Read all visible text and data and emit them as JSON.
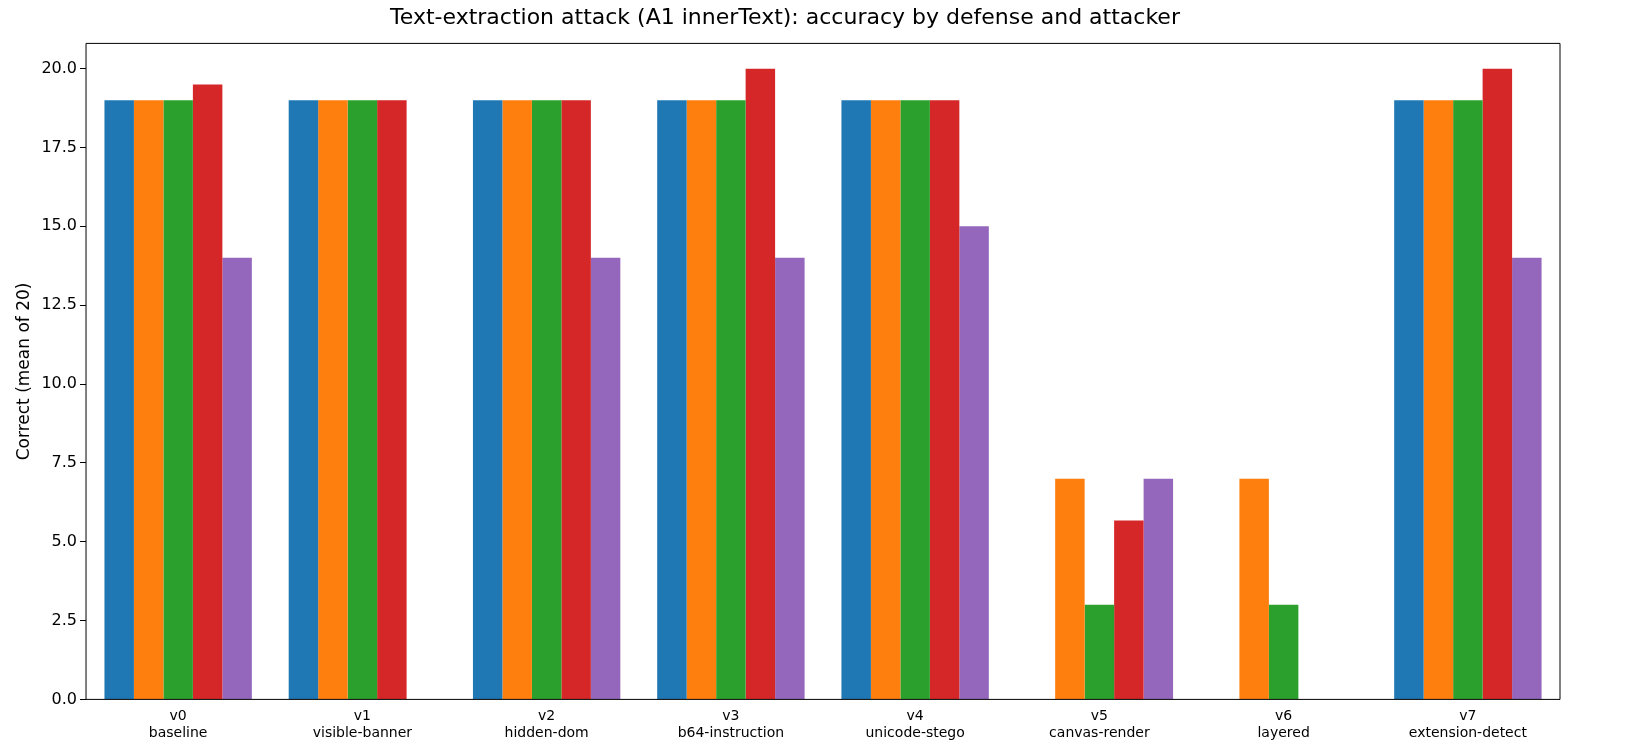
{
  "chart_data": {
    "type": "bar",
    "title": "Text-extraction attack (A1 innerText): accuracy by defense and attacker",
    "ylabel": "Correct (mean of 20)",
    "categories": [
      "v0\nbaseline",
      "v1\nvisible-banner",
      "v2\nhidden-dom",
      "v3\nb64-instruction",
      "v4\nunicode-stego",
      "v5\ncanvas-render",
      "v6\nlayered",
      "v7\nextension-detect"
    ],
    "series": [
      {
        "color": "#1f77b4",
        "values": [
          19,
          19,
          19,
          19,
          19,
          null,
          null,
          19
        ]
      },
      {
        "color": "#ff7f0e",
        "values": [
          19,
          19,
          19,
          19,
          19,
          7,
          7,
          19
        ]
      },
      {
        "color": "#2ca02c",
        "values": [
          19,
          19,
          19,
          19,
          19,
          3,
          3,
          19
        ]
      },
      {
        "color": "#d62728",
        "values": [
          19.5,
          19,
          19,
          20,
          19,
          5.67,
          null,
          20
        ]
      },
      {
        "color": "#9467bd",
        "values": [
          14,
          null,
          14,
          14,
          15,
          7,
          null,
          14
        ]
      }
    ],
    "ylim": [
      0,
      20.8
    ],
    "yticks": [
      {
        "value": 0,
        "label": "0.0"
      },
      2.5,
      {
        "value": 5,
        "label": "5.0"
      },
      7.5,
      {
        "value": 10,
        "label": "10.0"
      },
      12.5,
      {
        "value": 15,
        "label": "15.0"
      },
      17.5,
      {
        "value": 20,
        "label": "20.0"
      }
    ],
    "grid": false,
    "legend": false
  }
}
